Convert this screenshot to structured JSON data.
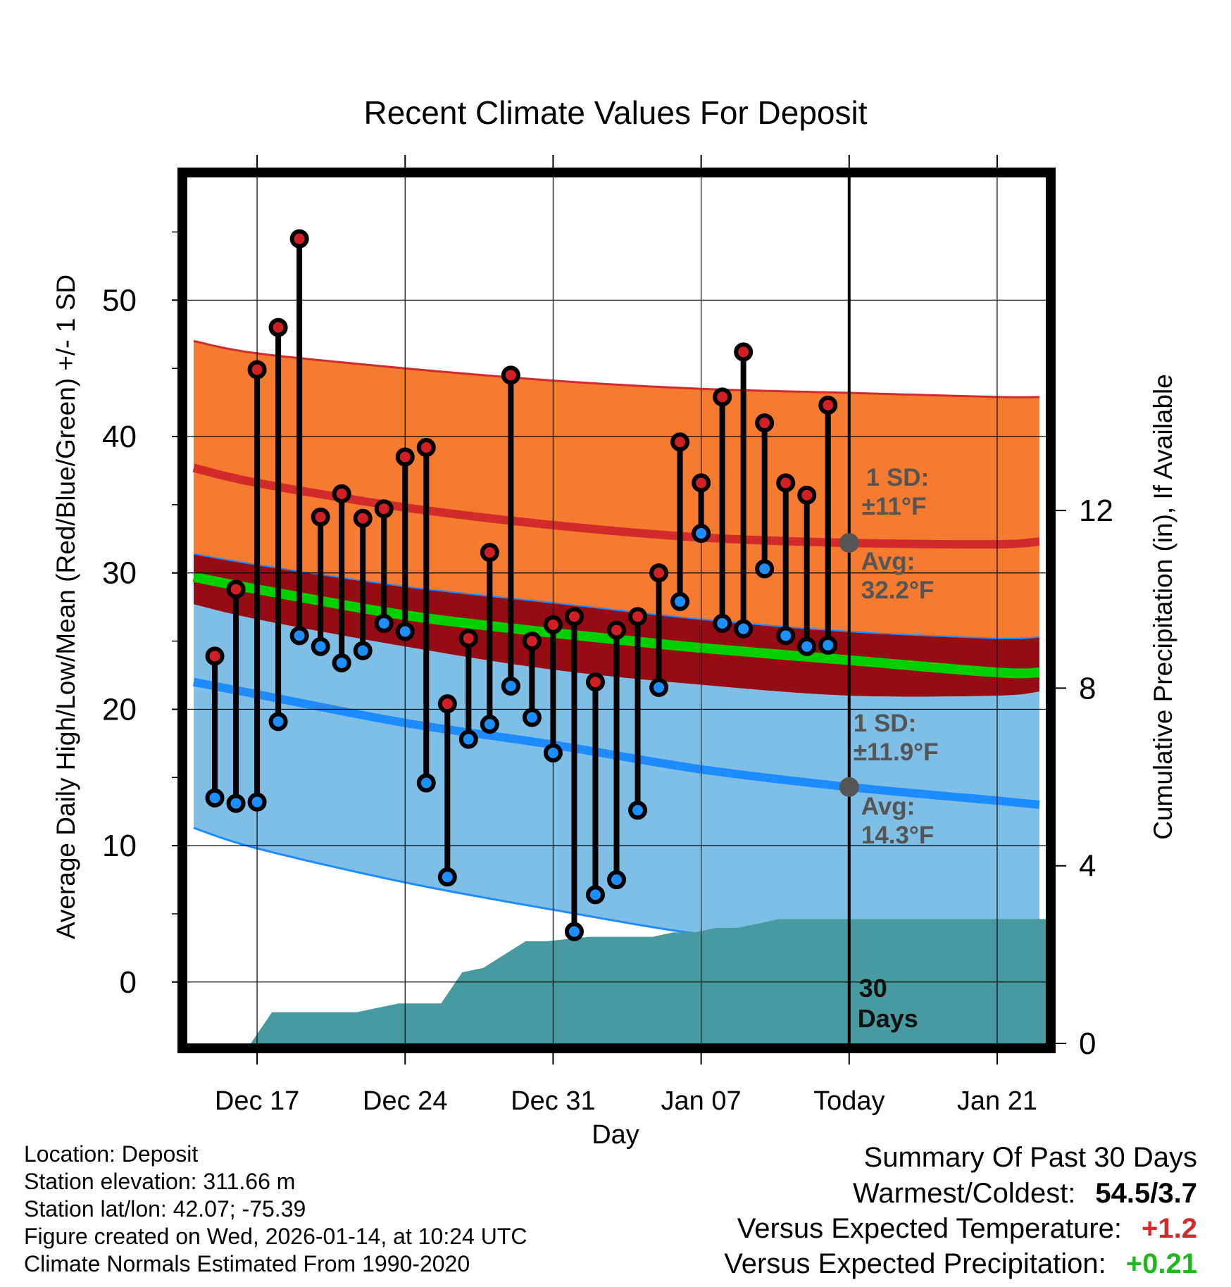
{
  "chart_data": {
    "type": "line",
    "title": "Recent Climate Values For Deposit",
    "xlabel": "Day",
    "ylabel": "Average Daily High/Low/Mean (Red/Blue/Green) +/- 1 SD",
    "y2label": "Cumulative Precipitation (in), If Available",
    "ylim": [
      -4.5,
      59
    ],
    "y_ticks": [
      0,
      10,
      20,
      30,
      40,
      50
    ],
    "y2lim": [
      0,
      19.5
    ],
    "y2_ticks": [
      0,
      4,
      8,
      12
    ],
    "x_tick_labels": [
      {
        "day": 4,
        "label": "Dec 17"
      },
      {
        "day": 11,
        "label": "Dec 24"
      },
      {
        "day": 18,
        "label": "Dec 31"
      },
      {
        "day": 25,
        "label": "Jan 07"
      },
      {
        "day": 32,
        "label": "Today"
      },
      {
        "day": 39,
        "label": "Jan 21"
      }
    ],
    "xlim": [
      0.7,
      41.3
    ],
    "today_day": 32,
    "daily_days": [
      2,
      3,
      4,
      5,
      6,
      7,
      8,
      9,
      10,
      11,
      12,
      13,
      14,
      15,
      16,
      17,
      18,
      19,
      20,
      21,
      22,
      23,
      24,
      25,
      26,
      27,
      28,
      29,
      30,
      31
    ],
    "daily_high": [
      23.9,
      28.8,
      44.9,
      48.0,
      54.5,
      34.1,
      35.8,
      34.0,
      34.7,
      38.5,
      39.2,
      20.4,
      25.2,
      31.5,
      44.5,
      25.0,
      26.2,
      26.8,
      22.0,
      25.8,
      26.8,
      30.0,
      39.6,
      36.6,
      42.9,
      46.2,
      41.0,
      36.6,
      35.7,
      42.3
    ],
    "daily_low": [
      13.5,
      13.1,
      13.2,
      19.1,
      25.4,
      24.6,
      23.4,
      24.3,
      26.3,
      25.7,
      14.6,
      7.7,
      17.8,
      18.9,
      21.7,
      19.4,
      16.8,
      3.7,
      6.4,
      7.5,
      12.6,
      21.6,
      27.9,
      32.9,
      26.3,
      25.9,
      30.3,
      25.4,
      24.6,
      24.7
    ],
    "normal_days": [
      1,
      4,
      11,
      18,
      25,
      32,
      39,
      41
    ],
    "normal_high": [
      37.7,
      36.6,
      34.8,
      33.5,
      32.6,
      32.2,
      32.1,
      32.3
    ],
    "normal_high_upper": [
      47.0,
      46.1,
      45.0,
      44.1,
      43.5,
      43.2,
      42.9,
      42.9
    ],
    "normal_mean": [
      29.7,
      28.8,
      26.9,
      25.6,
      24.5,
      23.6,
      22.7,
      22.7
    ],
    "normal_mean_upper": [
      31.4,
      30.6,
      29.0,
      27.8,
      26.6,
      25.7,
      25.2,
      25.3
    ],
    "normal_mean_lower": [
      27.7,
      26.6,
      24.6,
      22.9,
      21.8,
      21.0,
      21.0,
      21.3
    ],
    "normal_low": [
      22.0,
      21.1,
      19.0,
      17.4,
      15.6,
      14.3,
      13.3,
      13.0
    ],
    "normal_low_lower": [
      11.3,
      9.8,
      7.3,
      5.3,
      3.5,
      2.5,
      2.3,
      2.4
    ],
    "precip_days": [
      0.7,
      3.7,
      4.7,
      7.7,
      8.7,
      10.7,
      11.7,
      12.7,
      13.7,
      14.7,
      15.7,
      16.7,
      17.7,
      19.7,
      21.7,
      22.7,
      23.7,
      24.7,
      25.7,
      26.7,
      27.7,
      28.7,
      29.7,
      41.3
    ],
    "precip_cum": [
      0,
      0,
      0.7,
      0.7,
      0.7,
      0.9,
      0.9,
      0.9,
      1.6,
      1.7,
      2.0,
      2.3,
      2.3,
      2.4,
      2.4,
      2.4,
      2.5,
      2.5,
      2.6,
      2.6,
      2.7,
      2.8,
      2.8,
      2.8
    ],
    "annotations": {
      "high_sd_label": "1 SD:",
      "high_sd_value": "±11°F",
      "high_avg_label": "Avg:",
      "high_avg_value": "32.2°F",
      "low_sd_label": "1 SD:",
      "low_sd_value": "±11.9°F",
      "low_avg_label": "Avg:",
      "low_avg_value": "14.3°F",
      "days_count": "30",
      "days_word": "Days"
    },
    "colors": {
      "high_band": "#f47b2f",
      "high_line": "#d32b2b",
      "mean_band": "#950c14",
      "mean_line": "#00d000",
      "low_band": "#7fbfe6",
      "low_line": "#1e8cff",
      "precip_fill": "#469aa0",
      "high_marker": "#d11f26",
      "low_marker": "#1e8fff",
      "annotation_text": "#555555"
    }
  },
  "footer": {
    "location": "Location: Deposit",
    "elevation": "Station elevation: 311.66 m",
    "latlon": "Station lat/lon: 42.07; -75.39",
    "created": "Figure created on Wed, 2026-01-14, at 10:24 UTC",
    "normals": "Climate Normals Estimated From 1990-2020"
  },
  "summary": {
    "title": "Summary Of Past 30 Days",
    "warmest_label": "Warmest/Coldest:",
    "warmest_value": "54.5/3.7",
    "temp_label": "Versus Expected Temperature:",
    "temp_value": "+1.2",
    "temp_color": "#d32b2b",
    "precip_label": "Versus Expected Precipitation:",
    "precip_value": "+0.21",
    "precip_color": "#1fb81f"
  }
}
